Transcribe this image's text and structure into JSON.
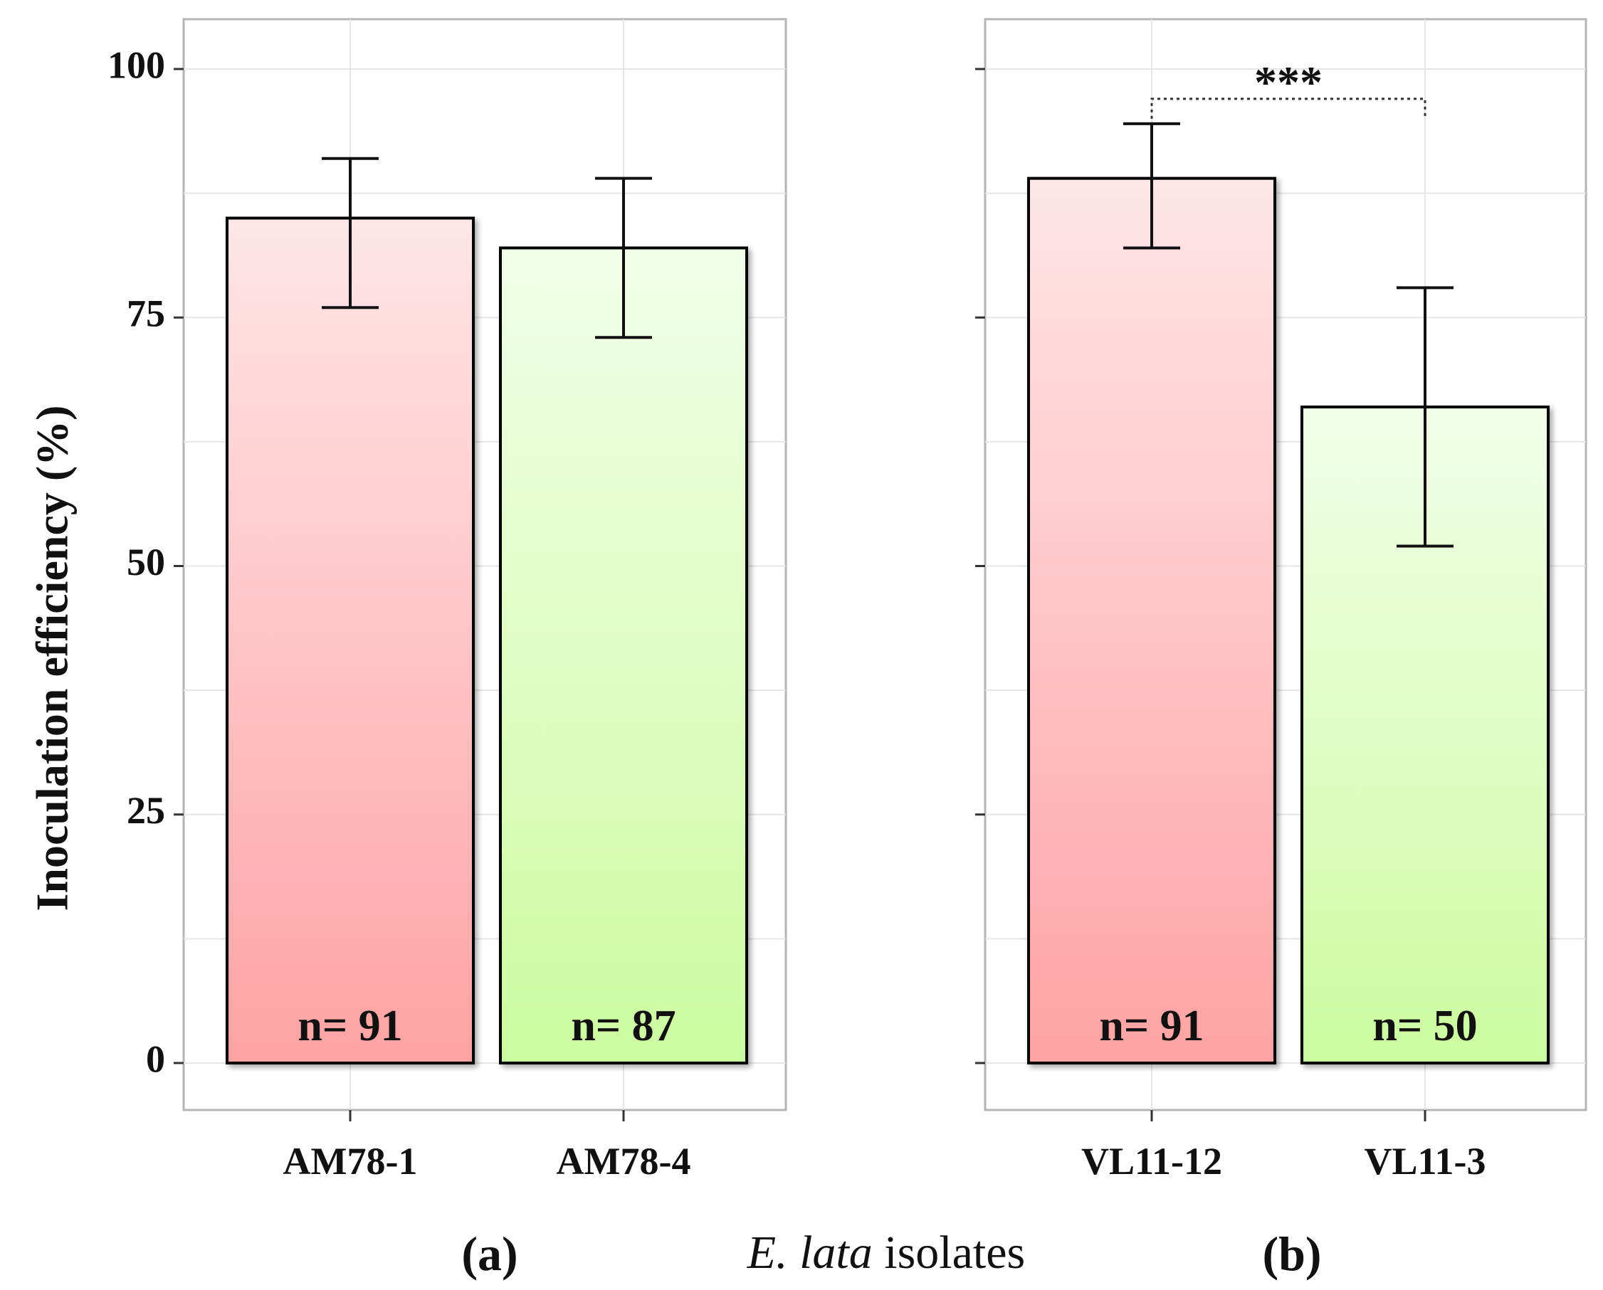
{
  "chart_data": {
    "type": "bar",
    "ylabel": "Inoculation efficiency (%)",
    "xlabel_italic": "E. lata",
    "xlabel_rest": " isolates",
    "ylim": [
      -5,
      105
    ],
    "yticks": [
      0,
      25,
      50,
      75,
      100
    ],
    "grid": true,
    "panels": [
      {
        "label": "(a)",
        "categories": [
          "AM78-1",
          "AM78-4"
        ],
        "values": [
          85,
          82
        ],
        "error_low": [
          76,
          73
        ],
        "error_high": [
          91,
          89
        ],
        "n_labels": [
          "n= 91",
          "n= 87"
        ],
        "colors": [
          "red",
          "green"
        ]
      },
      {
        "label": "(b)",
        "categories": [
          "VL11-12",
          "VL11-3"
        ],
        "values": [
          89,
          66
        ],
        "error_low": [
          82,
          52
        ],
        "error_high": [
          94.5,
          78
        ],
        "n_labels": [
          "n= 91",
          "n= 50"
        ],
        "colors": [
          "red",
          "green"
        ],
        "significance": {
          "between": [
            0,
            1
          ],
          "label": "***",
          "y": 97
        }
      }
    ]
  },
  "colors": {
    "red_top": "#ffe6e8",
    "red_bottom": "#ffa3a3",
    "green_top": "#f1ffe8",
    "green_bottom": "#ccfca0",
    "panel_border": "#b5b5b5",
    "grid": "#e6e6e6",
    "bar_outline": "#000000"
  }
}
